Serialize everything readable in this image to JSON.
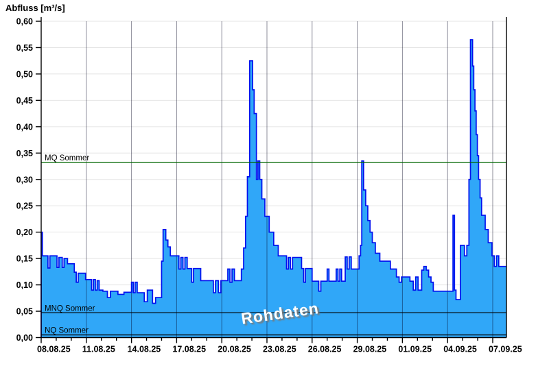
{
  "chart_data": {
    "type": "area",
    "title": "Abfluss [m³/s]",
    "watermark": "Rohdaten",
    "x_unit": "days_since_08.08.25",
    "xlim": [
      0,
      30.9
    ],
    "ylim": [
      0,
      0.6
    ],
    "grid": "horizontal-light-and-vertical-3day",
    "colors": {
      "fill": "#30a7f8",
      "outline": "#0010ee",
      "mq_line": "#006600",
      "stat_line": "#000000",
      "h_grid": "#e4e4e4",
      "v_grid": "rgba(0,0,30,0.45)",
      "axis": "#000000"
    },
    "y_ticks": [
      {
        "value": 0.0,
        "label": "0,00"
      },
      {
        "value": 0.05,
        "label": "0,05"
      },
      {
        "value": 0.1,
        "label": "0,10"
      },
      {
        "value": 0.15,
        "label": "0,15"
      },
      {
        "value": 0.2,
        "label": "0,20"
      },
      {
        "value": 0.25,
        "label": "0,25"
      },
      {
        "value": 0.3,
        "label": "0,30"
      },
      {
        "value": 0.35,
        "label": "0,35"
      },
      {
        "value": 0.4,
        "label": "0,40"
      },
      {
        "value": 0.45,
        "label": "0,45"
      },
      {
        "value": 0.5,
        "label": "0,50"
      },
      {
        "value": 0.55,
        "label": "0,55"
      },
      {
        "value": 0.6,
        "label": "0,60"
      }
    ],
    "x_ticks": [
      {
        "day": 0,
        "label": "08.08.25"
      },
      {
        "day": 3,
        "label": "11.08.25"
      },
      {
        "day": 6,
        "label": "14.08.25"
      },
      {
        "day": 9,
        "label": "17.08.25"
      },
      {
        "day": 12,
        "label": "20.08.25"
      },
      {
        "day": 15,
        "label": "23.08.25"
      },
      {
        "day": 18,
        "label": "26.08.25"
      },
      {
        "day": 21,
        "label": "29.08.25"
      },
      {
        "day": 24,
        "label": "01.09.25"
      },
      {
        "day": 27,
        "label": "04.09.25"
      },
      {
        "day": 30,
        "label": "07.09.25"
      }
    ],
    "reference_lines": [
      {
        "label": "MQ Sommer",
        "value": 0.332,
        "color": "#006600"
      },
      {
        "label": "MNQ Sommer",
        "value": 0.047,
        "color": "#000000"
      },
      {
        "label": "NQ Sommer",
        "value": 0.005,
        "color": "#000000"
      }
    ],
    "series": [
      {
        "name": "Abfluss Rohdaten",
        "points": [
          [
            0.0,
            0.2
          ],
          [
            0.08,
            0.155
          ],
          [
            0.45,
            0.132
          ],
          [
            0.58,
            0.155
          ],
          [
            1.05,
            0.133
          ],
          [
            1.18,
            0.152
          ],
          [
            1.4,
            0.133
          ],
          [
            1.52,
            0.15
          ],
          [
            1.75,
            0.14
          ],
          [
            2.2,
            0.124
          ],
          [
            2.33,
            0.105
          ],
          [
            2.46,
            0.122
          ],
          [
            2.95,
            0.11
          ],
          [
            3.35,
            0.09
          ],
          [
            3.47,
            0.11
          ],
          [
            3.6,
            0.09
          ],
          [
            3.72,
            0.108
          ],
          [
            3.85,
            0.09
          ],
          [
            4.1,
            0.088
          ],
          [
            4.4,
            0.076
          ],
          [
            4.6,
            0.088
          ],
          [
            5.1,
            0.082
          ],
          [
            5.5,
            0.086
          ],
          [
            6.0,
            0.105
          ],
          [
            6.12,
            0.085
          ],
          [
            6.24,
            0.105
          ],
          [
            6.38,
            0.085
          ],
          [
            6.85,
            0.068
          ],
          [
            7.05,
            0.09
          ],
          [
            7.4,
            0.065
          ],
          [
            7.6,
            0.076
          ],
          [
            8.0,
            0.145
          ],
          [
            8.1,
            0.205
          ],
          [
            8.28,
            0.185
          ],
          [
            8.42,
            0.172
          ],
          [
            8.58,
            0.155
          ],
          [
            9.15,
            0.13
          ],
          [
            9.28,
            0.152
          ],
          [
            9.42,
            0.13
          ],
          [
            9.55,
            0.152
          ],
          [
            9.7,
            0.131
          ],
          [
            10.0,
            0.105
          ],
          [
            10.12,
            0.131
          ],
          [
            10.6,
            0.108
          ],
          [
            11.3,
            0.108
          ],
          [
            11.44,
            0.085
          ],
          [
            11.58,
            0.108
          ],
          [
            11.78,
            0.085
          ],
          [
            11.94,
            0.108
          ],
          [
            12.4,
            0.13
          ],
          [
            12.54,
            0.105
          ],
          [
            12.68,
            0.13
          ],
          [
            12.84,
            0.108
          ],
          [
            13.3,
            0.13
          ],
          [
            13.45,
            0.17
          ],
          [
            13.58,
            0.23
          ],
          [
            13.7,
            0.305
          ],
          [
            13.85,
            0.525
          ],
          [
            14.05,
            0.47
          ],
          [
            14.15,
            0.425
          ],
          [
            14.3,
            0.3
          ],
          [
            14.4,
            0.335
          ],
          [
            14.52,
            0.3
          ],
          [
            14.66,
            0.263
          ],
          [
            14.86,
            0.23
          ],
          [
            15.15,
            0.2
          ],
          [
            15.45,
            0.175
          ],
          [
            15.75,
            0.155
          ],
          [
            16.3,
            0.13
          ],
          [
            16.42,
            0.152
          ],
          [
            16.56,
            0.13
          ],
          [
            16.7,
            0.152
          ],
          [
            17.3,
            0.131
          ],
          [
            17.44,
            0.105
          ],
          [
            17.56,
            0.131
          ],
          [
            18.0,
            0.107
          ],
          [
            18.44,
            0.088
          ],
          [
            18.58,
            0.107
          ],
          [
            19.0,
            0.13
          ],
          [
            19.12,
            0.107
          ],
          [
            19.6,
            0.13
          ],
          [
            19.72,
            0.107
          ],
          [
            19.84,
            0.13
          ],
          [
            19.96,
            0.107
          ],
          [
            20.2,
            0.153
          ],
          [
            20.33,
            0.13
          ],
          [
            20.46,
            0.153
          ],
          [
            20.6,
            0.13
          ],
          [
            21.0,
            0.13
          ],
          [
            21.12,
            0.155
          ],
          [
            21.22,
            0.175
          ],
          [
            21.3,
            0.335
          ],
          [
            21.42,
            0.28
          ],
          [
            21.56,
            0.25
          ],
          [
            21.7,
            0.222
          ],
          [
            21.85,
            0.2
          ],
          [
            22.0,
            0.18
          ],
          [
            22.2,
            0.16
          ],
          [
            22.5,
            0.145
          ],
          [
            23.2,
            0.13
          ],
          [
            23.6,
            0.115
          ],
          [
            23.78,
            0.105
          ],
          [
            23.94,
            0.115
          ],
          [
            24.5,
            0.107
          ],
          [
            24.72,
            0.09
          ],
          [
            24.88,
            0.115
          ],
          [
            25.04,
            0.09
          ],
          [
            25.28,
            0.128
          ],
          [
            25.42,
            0.135
          ],
          [
            25.58,
            0.128
          ],
          [
            25.74,
            0.115
          ],
          [
            25.9,
            0.105
          ],
          [
            26.05,
            0.088
          ],
          [
            27.3,
            0.088
          ],
          [
            27.36,
            0.232
          ],
          [
            27.46,
            0.09
          ],
          [
            27.56,
            0.072
          ],
          [
            27.85,
            0.175
          ],
          [
            28.12,
            0.155
          ],
          [
            28.28,
            0.175
          ],
          [
            28.42,
            0.3
          ],
          [
            28.52,
            0.565
          ],
          [
            28.66,
            0.515
          ],
          [
            28.74,
            0.47
          ],
          [
            28.82,
            0.43
          ],
          [
            28.9,
            0.385
          ],
          [
            28.98,
            0.345
          ],
          [
            29.06,
            0.3
          ],
          [
            29.16,
            0.265
          ],
          [
            29.26,
            0.232
          ],
          [
            29.5,
            0.205
          ],
          [
            29.7,
            0.18
          ],
          [
            29.95,
            0.155
          ],
          [
            30.1,
            0.135
          ],
          [
            30.25,
            0.155
          ],
          [
            30.4,
            0.135
          ],
          [
            30.85,
            0.135
          ]
        ]
      }
    ]
  }
}
